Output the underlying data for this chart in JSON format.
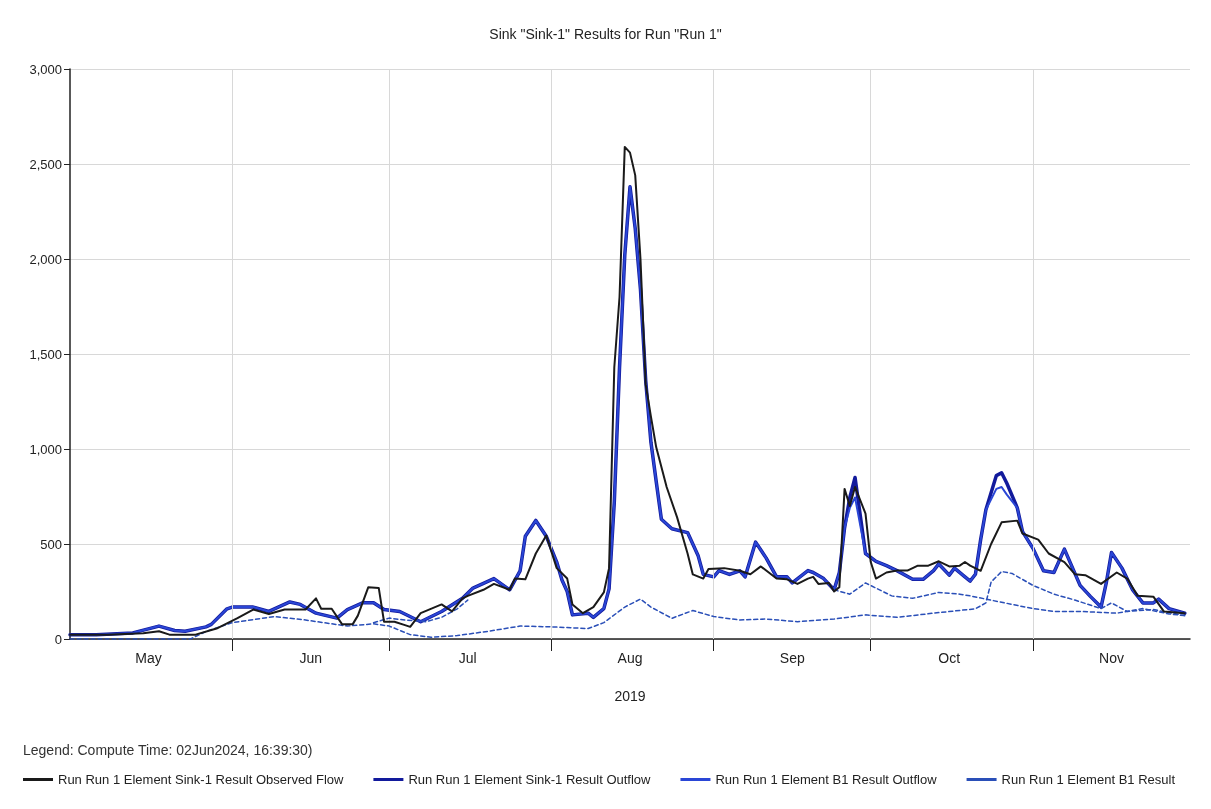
{
  "chart_data": {
    "type": "line",
    "title": "Sink \"Sink-1\" Results for Run \"Run 1\"",
    "xlabel": "2019",
    "legend_title": "Legend: Compute Time: 02Jun2024, 16:39:30)",
    "xlim": [
      "2019-05-01",
      "2019-12-01"
    ],
    "xticks": [
      {
        "value": "2019-05-16",
        "label": "May"
      },
      {
        "value": "2019-06-01",
        "label": null
      },
      {
        "value": "2019-06-16",
        "label": "Jun"
      },
      {
        "value": "2019-07-01",
        "label": null
      },
      {
        "value": "2019-07-16",
        "label": "Jul"
      },
      {
        "value": "2019-08-01",
        "label": null
      },
      {
        "value": "2019-08-16",
        "label": "Aug"
      },
      {
        "value": "2019-09-01",
        "label": null
      },
      {
        "value": "2019-09-16",
        "label": "Sep"
      },
      {
        "value": "2019-10-01",
        "label": null
      },
      {
        "value": "2019-10-16",
        "label": "Oct"
      },
      {
        "value": "2019-11-01",
        "label": null
      },
      {
        "value": "2019-11-16",
        "label": "Nov"
      }
    ],
    "ylim": [
      0,
      3000
    ],
    "yticks": [
      0,
      500,
      {
        "value": 1000,
        "label": "1,000"
      },
      {
        "value": 1500,
        "label": "1,500"
      },
      {
        "value": 2000,
        "label": "2,000"
      },
      {
        "value": 2500,
        "label": "2,500"
      },
      {
        "value": 3000,
        "label": "3,000"
      }
    ],
    "grid": true,
    "legend": "bottom",
    "series": [
      {
        "name": "Run Run 1 Element Sink-1 Result Observed Flow",
        "color": "#1a1a1a",
        "line_style": "solid",
        "x": [
          "2019-05-01",
          "2019-05-08",
          "2019-05-15",
          "2019-05-18",
          "2019-05-20",
          "2019-05-25",
          "2019-05-29",
          "2019-06-02",
          "2019-06-05",
          "2019-06-08",
          "2019-06-11",
          "2019-06-15",
          "2019-06-17",
          "2019-06-18",
          "2019-06-20",
          "2019-06-22",
          "2019-06-24",
          "2019-06-25",
          "2019-06-27",
          "2019-06-29",
          "2019-06-30",
          "2019-07-02",
          "2019-07-04",
          "2019-07-05",
          "2019-07-07",
          "2019-07-11",
          "2019-07-13",
          "2019-07-15",
          "2019-07-16",
          "2019-07-19",
          "2019-07-21",
          "2019-07-24",
          "2019-07-25",
          "2019-07-27",
          "2019-07-29",
          "2019-07-31",
          "2019-08-02",
          "2019-08-04",
          "2019-08-05",
          "2019-08-07",
          "2019-08-09",
          "2019-08-11",
          "2019-08-12",
          "2019-08-13",
          "2019-08-14",
          "2019-08-15",
          "2019-08-16",
          "2019-08-17",
          "2019-08-18",
          "2019-08-19",
          "2019-08-20",
          "2019-08-21",
          "2019-08-23",
          "2019-08-25",
          "2019-08-27",
          "2019-08-28",
          "2019-08-30",
          "2019-08-31",
          "2019-09-03",
          "2019-09-06",
          "2019-09-08",
          "2019-09-10",
          "2019-09-13",
          "2019-09-15",
          "2019-09-17",
          "2019-09-19",
          "2019-09-20",
          "2019-09-21",
          "2019-09-23",
          "2019-09-24",
          "2019-09-25",
          "2019-09-26",
          "2019-09-27",
          "2019-09-28",
          "2019-09-30",
          "2019-10-01",
          "2019-10-02",
          "2019-10-04",
          "2019-10-06",
          "2019-10-08",
          "2019-10-10",
          "2019-10-12",
          "2019-10-14",
          "2019-10-16",
          "2019-10-18",
          "2019-10-19",
          "2019-10-20",
          "2019-10-22",
          "2019-10-24",
          "2019-10-26",
          "2019-10-29",
          "2019-10-30",
          "2019-11-02",
          "2019-11-04",
          "2019-11-07",
          "2019-11-09",
          "2019-11-11",
          "2019-11-14",
          "2019-11-17",
          "2019-11-19",
          "2019-11-21",
          "2019-11-24",
          "2019-11-26",
          "2019-11-30"
        ],
        "values": [
          23,
          23,
          30,
          41,
          23,
          23,
          55,
          110,
          155,
          132,
          155,
          155,
          214,
          159,
          159,
          77,
          77,
          123,
          273,
          268,
          91,
          91,
          73,
          64,
          136,
          182,
          145,
          214,
          227,
          259,
          290,
          259,
          318,
          314,
          450,
          545,
          373,
          318,
          182,
          136,
          168,
          245,
          373,
          1430,
          1800,
          2590,
          2560,
          2440,
          2000,
          1340,
          1170,
          1010,
          800,
          640,
          450,
          340,
          318,
          368,
          373,
          359,
          341,
          382,
          318,
          314,
          290,
          318,
          327,
          290,
          295,
          250,
          273,
          790,
          700,
          800,
          660,
          405,
          318,
          350,
          360,
          360,
          386,
          386,
          409,
          382,
          386,
          405,
          386,
          359,
          500,
          614,
          623,
          555,
          523,
          450,
          405,
          341,
          336,
          290,
          350,
          318,
          227,
          223,
          145,
          136
        ]
      },
      {
        "name": "Run Run 1 Element Sink-1 Result Outflow",
        "color": "#121a9c",
        "line_style": "solid",
        "x": [
          "2019-05-01",
          "2019-05-06",
          "2019-05-13",
          "2019-05-18",
          "2019-05-21",
          "2019-05-23",
          "2019-05-27",
          "2019-05-28",
          "2019-05-31",
          "2019-06-01",
          "2019-06-05",
          "2019-06-08",
          "2019-06-12",
          "2019-06-14",
          "2019-06-17",
          "2019-06-21",
          "2019-06-23",
          "2019-06-26",
          "2019-06-28",
          "2019-06-30",
          "2019-07-03",
          "2019-07-07",
          "2019-07-11",
          "2019-07-15",
          "2019-07-17",
          "2019-07-21",
          "2019-07-24",
          "2019-07-26",
          "2019-07-27",
          "2019-07-29",
          "2019-07-31",
          "2019-08-02",
          "2019-08-03",
          "2019-08-04",
          "2019-08-05",
          "2019-08-08",
          "2019-08-09",
          "2019-08-11",
          "2019-08-12",
          "2019-08-13",
          "2019-08-14",
          "2019-08-15",
          "2019-08-16",
          "2019-08-17",
          "2019-08-18",
          "2019-08-19",
          "2019-08-20",
          "2019-08-21",
          "2019-08-22",
          "2019-08-24",
          "2019-08-27",
          "2019-08-29",
          "2019-08-30",
          "2019-09-01",
          "2019-09-02",
          "2019-09-04",
          "2019-09-06",
          "2019-09-07",
          "2019-09-09",
          "2019-09-11",
          "2019-09-13",
          "2019-09-15",
          "2019-09-16",
          "2019-09-19",
          "2019-09-20",
          "2019-09-22",
          "2019-09-24",
          "2019-09-25",
          "2019-09-26",
          "2019-09-27",
          "2019-09-28",
          "2019-09-30",
          "2019-10-02",
          "2019-10-04",
          "2019-10-06",
          "2019-10-09",
          "2019-10-11",
          "2019-10-13",
          "2019-10-14",
          "2019-10-16",
          "2019-10-17",
          "2019-10-19",
          "2019-10-20",
          "2019-10-21",
          "2019-10-22",
          "2019-10-23",
          "2019-10-25",
          "2019-10-26",
          "2019-10-27",
          "2019-10-29",
          "2019-10-30",
          "2019-11-01",
          "2019-11-03",
          "2019-11-05",
          "2019-11-07",
          "2019-11-10",
          "2019-11-12",
          "2019-11-14",
          "2019-11-15",
          "2019-11-16",
          "2019-11-18",
          "2019-11-20",
          "2019-11-22",
          "2019-11-24",
          "2019-11-25",
          "2019-11-27",
          "2019-11-30"
        ],
        "values": [
          23,
          23,
          32,
          68,
          45,
          41,
          64,
          77,
          159,
          168,
          168,
          145,
          195,
          182,
          136,
          110,
          155,
          191,
          191,
          155,
          145,
          91,
          145,
          214,
          268,
          318,
          259,
          359,
          541,
          624,
          541,
          405,
          310,
          250,
          127,
          136,
          114,
          160,
          264,
          720,
          1430,
          2020,
          2380,
          2160,
          1840,
          1360,
          1035,
          830,
          630,
          580,
          560,
          440,
          340,
          327,
          360,
          340,
          359,
          327,
          510,
          427,
          327,
          327,
          295,
          360,
          350,
          318,
          259,
          350,
          585,
          745,
          850,
          450,
          409,
          386,
          360,
          314,
          314,
          360,
          395,
          336,
          373,
          327,
          305,
          341,
          523,
          680,
          860,
          875,
          820,
          690,
          565,
          477,
          359,
          350,
          473,
          282,
          223,
          168,
          295,
          455,
          373,
          260,
          190,
          190,
          210,
          160,
          136
        ]
      },
      {
        "name": "Run Run 1 Element B1 Result Outflow",
        "color": "#2a46d6",
        "line_style": "solid",
        "x": [
          "2019-05-01",
          "2019-05-06",
          "2019-05-13",
          "2019-05-18",
          "2019-05-21",
          "2019-05-23",
          "2019-05-27",
          "2019-05-28",
          "2019-05-31",
          "2019-06-01",
          "2019-06-05",
          "2019-06-08",
          "2019-06-12",
          "2019-06-14",
          "2019-06-17",
          "2019-06-21",
          "2019-06-23",
          "2019-06-26",
          "2019-06-28",
          "2019-06-30",
          "2019-07-03",
          "2019-07-07",
          "2019-07-11",
          "2019-07-15",
          "2019-07-17",
          "2019-07-21",
          "2019-07-24",
          "2019-07-26",
          "2019-07-27",
          "2019-07-29",
          "2019-07-31",
          "2019-08-02",
          "2019-08-03",
          "2019-08-04",
          "2019-08-05",
          "2019-08-08",
          "2019-08-09",
          "2019-08-11",
          "2019-08-12",
          "2019-08-13",
          "2019-08-14",
          "2019-08-15",
          "2019-08-16",
          "2019-08-17",
          "2019-08-18",
          "2019-08-19",
          "2019-08-20",
          "2019-08-21",
          "2019-08-22",
          "2019-08-24",
          "2019-08-27",
          "2019-08-29",
          "2019-08-30",
          "2019-09-01",
          "2019-09-02",
          "2019-09-04",
          "2019-09-06",
          "2019-09-07",
          "2019-09-09",
          "2019-09-11",
          "2019-09-13",
          "2019-09-15",
          "2019-09-16",
          "2019-09-19",
          "2019-09-20",
          "2019-09-22",
          "2019-09-24",
          "2019-09-25",
          "2019-09-26",
          "2019-09-27",
          "2019-09-28",
          "2019-09-30",
          "2019-10-02",
          "2019-10-04",
          "2019-10-06",
          "2019-10-09",
          "2019-10-11",
          "2019-10-13",
          "2019-10-14",
          "2019-10-16",
          "2019-10-17",
          "2019-10-19",
          "2019-10-20",
          "2019-10-21",
          "2019-10-22",
          "2019-10-23",
          "2019-10-25",
          "2019-10-26",
          "2019-10-27",
          "2019-10-29",
          "2019-10-30",
          "2019-11-01",
          "2019-11-03",
          "2019-11-05",
          "2019-11-07",
          "2019-11-10",
          "2019-11-12",
          "2019-11-14",
          "2019-11-15",
          "2019-11-16",
          "2019-11-18",
          "2019-11-20",
          "2019-11-22",
          "2019-11-24",
          "2019-11-25",
          "2019-11-27",
          "2019-11-30"
        ],
        "values": [
          23,
          23,
          32,
          68,
          45,
          41,
          64,
          77,
          159,
          168,
          168,
          145,
          195,
          182,
          136,
          110,
          155,
          191,
          191,
          155,
          145,
          91,
          145,
          214,
          268,
          318,
          259,
          359,
          541,
          624,
          541,
          405,
          310,
          250,
          127,
          136,
          114,
          160,
          264,
          720,
          1430,
          2020,
          2380,
          2160,
          1840,
          1360,
          1035,
          830,
          630,
          580,
          560,
          440,
          340,
          327,
          360,
          340,
          359,
          327,
          510,
          427,
          327,
          327,
          295,
          360,
          350,
          318,
          259,
          350,
          585,
          690,
          745,
          450,
          409,
          386,
          360,
          314,
          314,
          360,
          395,
          336,
          373,
          327,
          305,
          341,
          523,
          680,
          790,
          800,
          760,
          690,
          565,
          477,
          359,
          350,
          473,
          282,
          223,
          168,
          295,
          455,
          373,
          260,
          190,
          190,
          210,
          160,
          136
        ]
      },
      {
        "name": "Run Run 1 Element B1 Result",
        "color": "#2a4fb8",
        "line_style": "dashed",
        "x": [
          "2019-05-01",
          "2019-05-24",
          "2019-05-27",
          "2019-06-01",
          "2019-06-09",
          "2019-06-15",
          "2019-06-23",
          "2019-06-28",
          "2019-07-01",
          "2019-07-05",
          "2019-07-09",
          "2019-07-14",
          "2019-07-20",
          "2019-07-26",
          "2019-08-01",
          "2019-08-08",
          "2019-08-11",
          "2019-08-15",
          "2019-08-18",
          "2019-08-20",
          "2019-08-24",
          "2019-08-28",
          "2019-09-01",
          "2019-09-06",
          "2019-09-11",
          "2019-09-17",
          "2019-09-24",
          "2019-09-30",
          "2019-10-06",
          "2019-10-13",
          "2019-10-21",
          "2019-10-23",
          "2019-10-24",
          "2019-10-26",
          "2019-10-28",
          "2019-11-01",
          "2019-11-05",
          "2019-11-09",
          "2019-11-14",
          "2019-11-16",
          "2019-11-19",
          "2019-11-24",
          "2019-11-30"
        ],
        "values": [
          0,
          0,
          40,
          86,
          118,
          100,
          68,
          80,
          68,
          23,
          9,
          18,
          41,
          68,
          64,
          55,
          86,
          168,
          210,
          168,
          109,
          150,
          118,
          100,
          105,
          91,
          105,
          127,
          114,
          136,
          159,
          190,
          300,
          355,
          345,
          282,
          236,
          205,
          160,
          190,
          145,
          155,
          123
        ]
      },
      {
        "color": "#2a4fb8",
        "line_style": "dashed",
        "x": [
          "2019-06-28",
          "2019-07-01",
          "2019-07-04",
          "2019-07-08",
          "2019-07-11",
          "2019-07-14",
          "2019-07-16",
          "2019-08-15",
          "2019-09-24",
          "2019-09-27",
          "2019-09-30",
          "2019-10-05",
          "2019-10-09",
          "2019-10-14",
          "2019-10-18",
          "2019-10-20",
          "2019-10-23",
          "2019-11-01",
          "2019-11-05",
          "2019-11-10",
          "2019-11-17",
          "2019-11-22",
          "2019-11-27",
          "2019-11-30"
        ],
        "values": [
          86,
          110,
          100,
          91,
          114,
          159,
          205,
          null,
          259,
          236,
          295,
          227,
          214,
          245,
          236,
          227,
          210,
          160,
          145,
          145,
          136,
          160,
          132,
          123
        ]
      }
    ]
  }
}
